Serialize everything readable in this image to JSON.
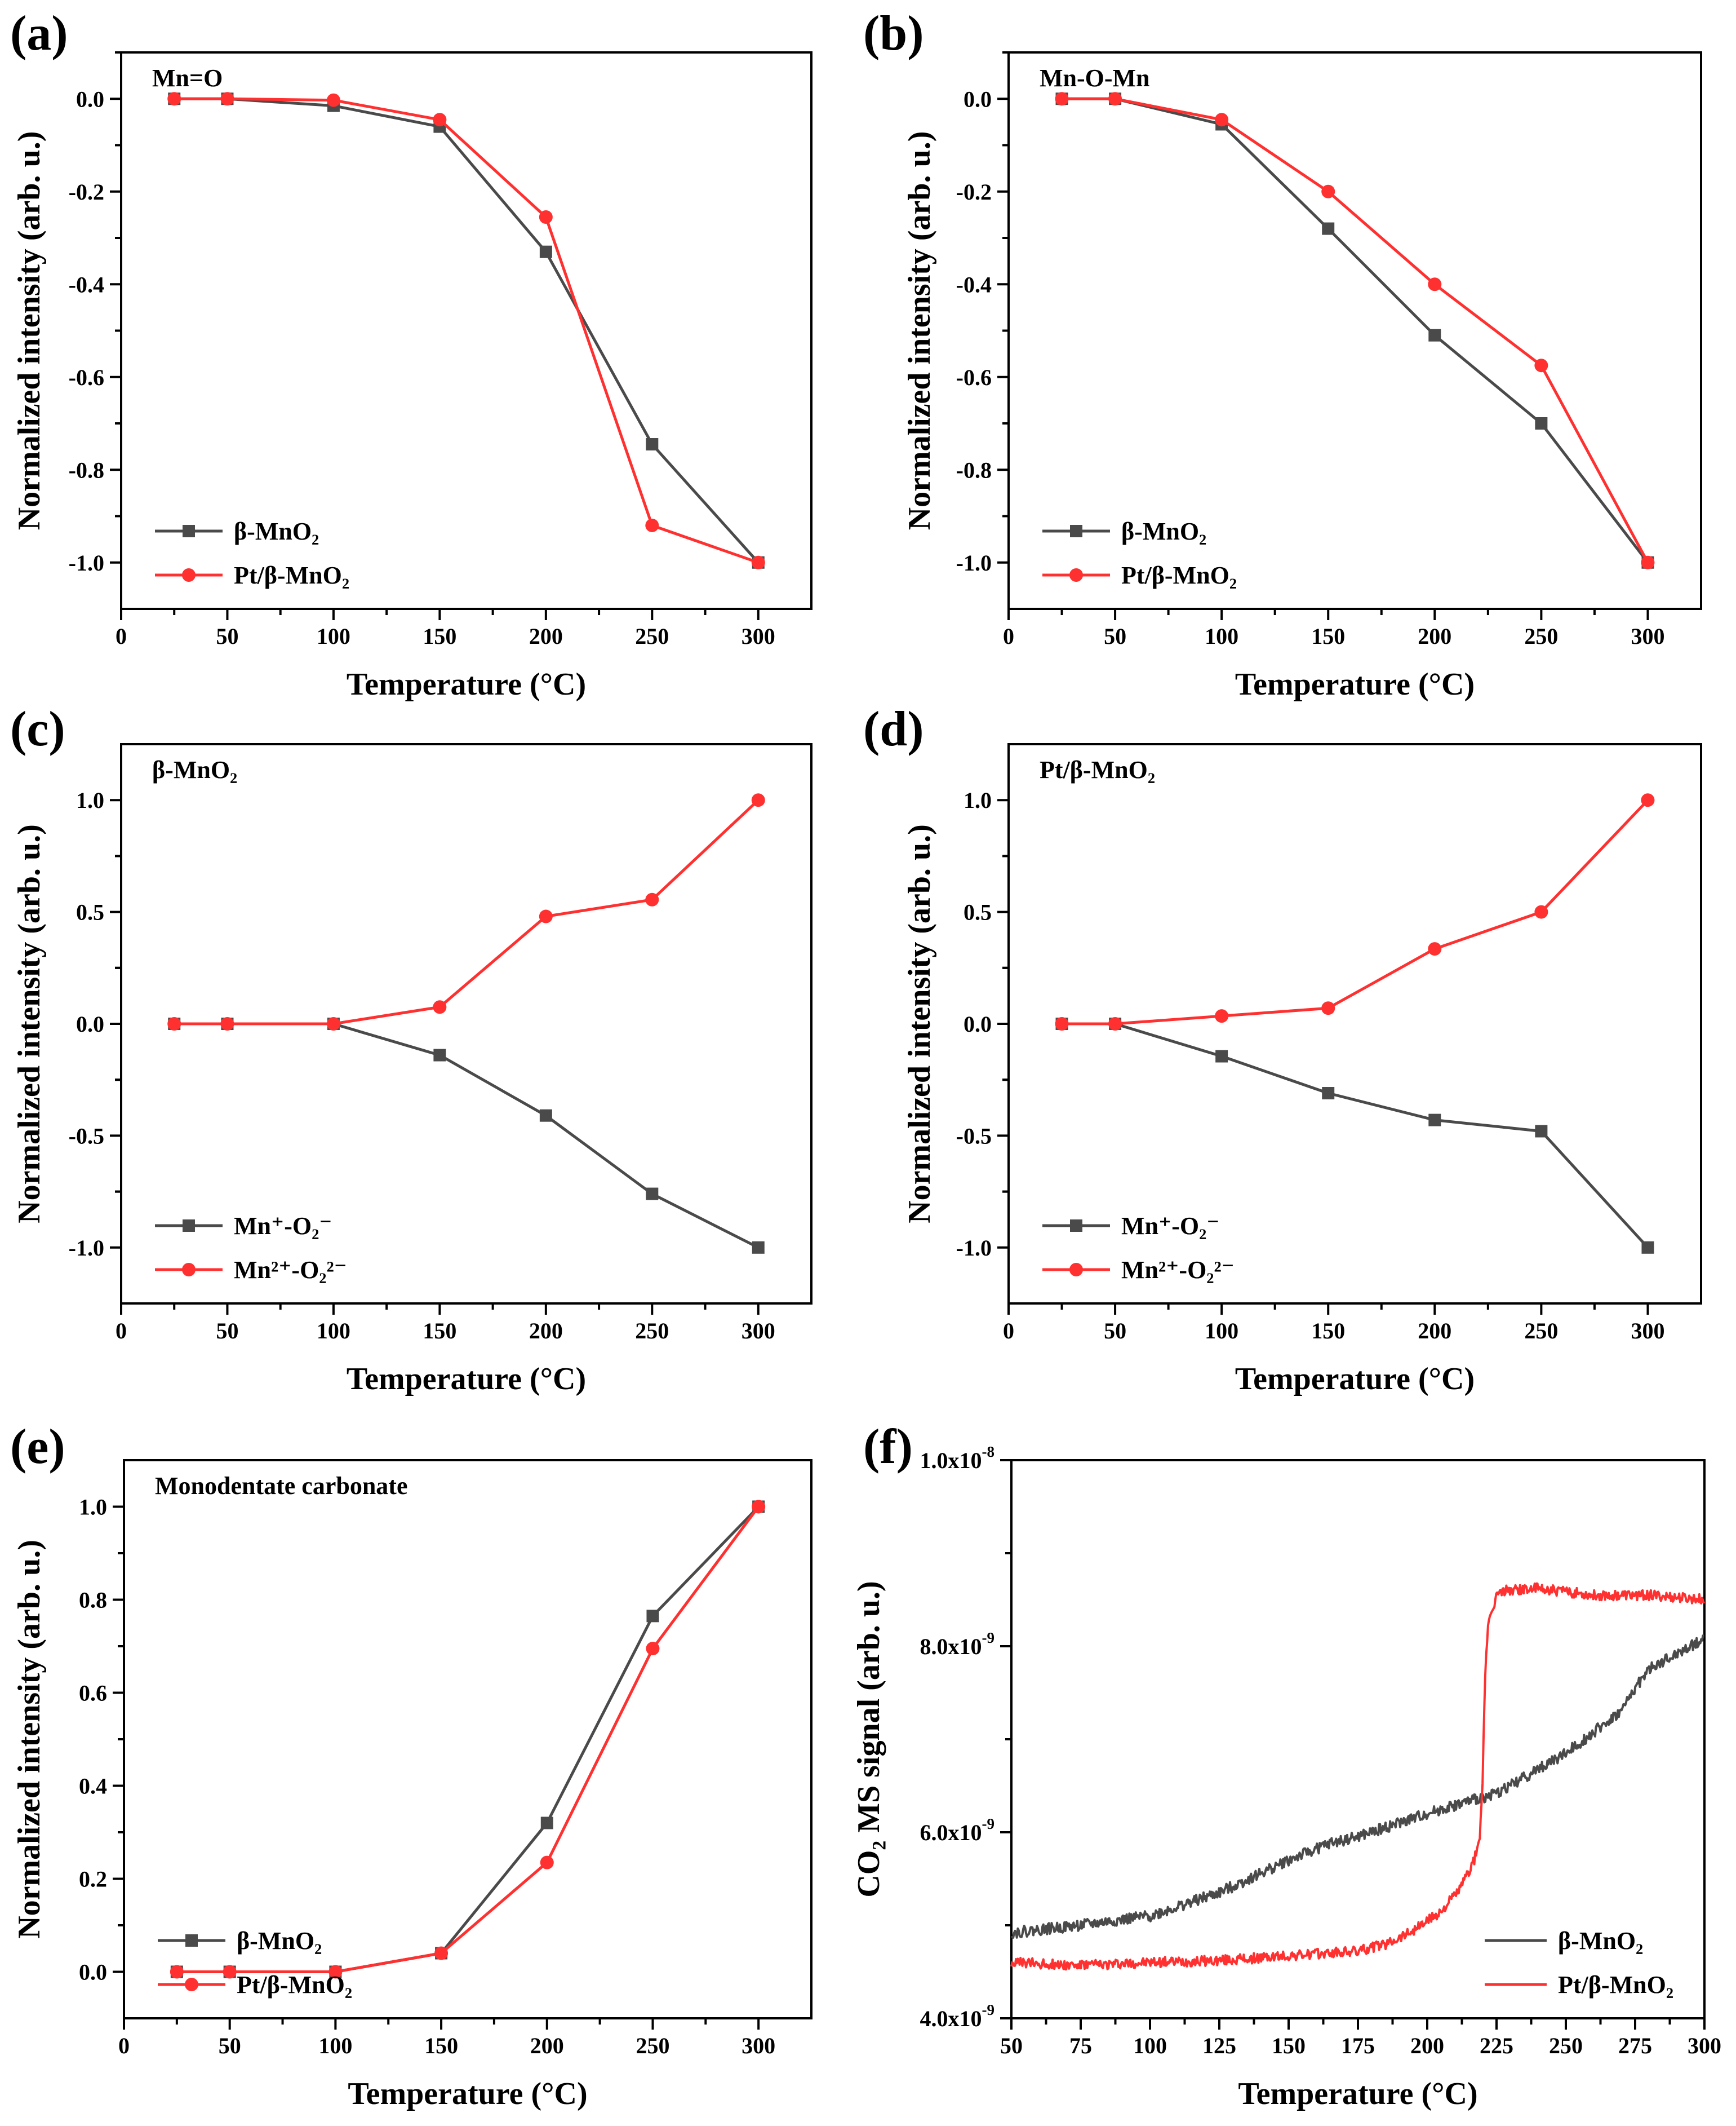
{
  "chart_data": [
    {
      "panel": "(a)",
      "type": "line",
      "label": "Mn=O",
      "xlabel": "Temperature (°C)",
      "ylabel": "Normalized intensity (arb. u.)",
      "xlim": [
        0,
        325
      ],
      "ylim": [
        -1.1,
        0.1
      ],
      "xticks": [
        0,
        50,
        100,
        150,
        200,
        250,
        300
      ],
      "yticks": [
        0.0,
        -0.2,
        -0.4,
        -0.6,
        -0.8,
        -1.0
      ],
      "ytick_labels": [
        "0.0",
        "-0.2",
        "-0.4",
        "-0.6",
        "-0.8",
        "-1.0"
      ],
      "legend_position": "bottom-left",
      "x": [
        25,
        50,
        100,
        150,
        200,
        250,
        300
      ],
      "series": [
        {
          "name": "β-MnO₂",
          "name_prefix": "β",
          "name_rest": "-MnO",
          "name_sub": "2",
          "color": "#4a4a4a",
          "marker": "square",
          "values": [
            0.0,
            0.0,
            -0.015,
            -0.06,
            -0.33,
            -0.745,
            -1.0
          ]
        },
        {
          "name": "Pt/β-MnO₂",
          "name_pre": "Pt/",
          "name_prefix": "β",
          "name_rest": "-MnO",
          "name_sub": "2",
          "color": "#ff3030",
          "marker": "circle",
          "values": [
            0.0,
            0.0,
            -0.003,
            -0.045,
            -0.255,
            -0.92,
            -1.0
          ]
        }
      ]
    },
    {
      "panel": "(b)",
      "type": "line",
      "label": "Mn-O-Mn",
      "xlabel": "Temperature (°C)",
      "ylabel": "Normalized intensity (arb. u.)",
      "xlim": [
        0,
        325
      ],
      "ylim": [
        -1.1,
        0.1
      ],
      "xticks": [
        0,
        50,
        100,
        150,
        200,
        250,
        300
      ],
      "yticks": [
        0.0,
        -0.2,
        -0.4,
        -0.6,
        -0.8,
        -1.0
      ],
      "ytick_labels": [
        "0.0",
        "-0.2",
        "-0.4",
        "-0.6",
        "-0.8",
        "-1.0"
      ],
      "legend_position": "bottom-left",
      "x": [
        25,
        50,
        100,
        150,
        200,
        250,
        300
      ],
      "series": [
        {
          "name": "β-MnO₂",
          "name_prefix": "β",
          "name_rest": "-MnO",
          "name_sub": "2",
          "color": "#4a4a4a",
          "marker": "square",
          "values": [
            0.0,
            0.0,
            -0.055,
            -0.28,
            -0.51,
            -0.7,
            -1.0
          ]
        },
        {
          "name": "Pt/β-MnO₂",
          "name_pre": "Pt/",
          "name_prefix": "β",
          "name_rest": "-MnO",
          "name_sub": "2",
          "color": "#ff3030",
          "marker": "circle",
          "values": [
            0.0,
            0.0,
            -0.045,
            -0.2,
            -0.4,
            -0.575,
            -1.0
          ]
        }
      ]
    },
    {
      "panel": "(c)",
      "type": "line",
      "label": "β-MnO₂",
      "xlabel": "Temperature (°C)",
      "ylabel": "Normalized intensity (arb. u.)",
      "xlim": [
        0,
        325
      ],
      "ylim": [
        -1.25,
        1.25
      ],
      "xticks": [
        0,
        50,
        100,
        150,
        200,
        250,
        300
      ],
      "yticks": [
        1.0,
        0.5,
        0.0,
        -0.5,
        -1.0
      ],
      "ytick_labels": [
        "1.0",
        "0.5",
        "0.0",
        "-0.5",
        "-1.0"
      ],
      "legend_position": "bottom-left",
      "x": [
        25,
        50,
        100,
        150,
        200,
        250,
        300
      ],
      "series": [
        {
          "name": "Mn⁺-O₂⁻",
          "color": "#4a4a4a",
          "marker": "square",
          "values": [
            0.0,
            0.0,
            0.0,
            -0.14,
            -0.41,
            -0.76,
            -1.0
          ]
        },
        {
          "name": "Mn²⁺-O₂²⁻",
          "color": "#ff3030",
          "marker": "circle",
          "values": [
            0.0,
            0.0,
            0.0,
            0.075,
            0.48,
            0.555,
            1.0
          ]
        }
      ]
    },
    {
      "panel": "(d)",
      "type": "line",
      "label": "Pt/β-MnO₂",
      "xlabel": "Temperature (°C)",
      "ylabel": "Normalized intensity (arb. u.)",
      "xlim": [
        0,
        325
      ],
      "ylim": [
        -1.25,
        1.25
      ],
      "xticks": [
        0,
        50,
        100,
        150,
        200,
        250,
        300
      ],
      "yticks": [
        1.0,
        0.5,
        0.0,
        -0.5,
        -1.0
      ],
      "ytick_labels": [
        "1.0",
        "0.5",
        "0.0",
        "-0.5",
        "-1.0"
      ],
      "legend_position": "bottom-left",
      "x": [
        25,
        50,
        100,
        150,
        200,
        250,
        300
      ],
      "series": [
        {
          "name": "Mn⁺-O₂⁻",
          "color": "#4a4a4a",
          "marker": "square",
          "values": [
            0.0,
            0.0,
            -0.145,
            -0.31,
            -0.43,
            -0.48,
            -1.0
          ]
        },
        {
          "name": "Mn²⁺-O₂²⁻",
          "color": "#ff3030",
          "marker": "circle",
          "values": [
            0.0,
            0.0,
            0.035,
            0.07,
            0.335,
            0.5,
            1.0
          ]
        }
      ]
    },
    {
      "panel": "(e)",
      "type": "line",
      "label": "Monodentate carbonate",
      "xlabel": "Temperature (°C)",
      "ylabel": "Normalized intensity (arb. u.)",
      "xlim": [
        0,
        325
      ],
      "ylim": [
        -0.1,
        1.1
      ],
      "xticks": [
        0,
        50,
        100,
        150,
        200,
        250,
        300
      ],
      "yticks": [
        1.0,
        0.8,
        0.6,
        0.4,
        0.2,
        0.0
      ],
      "ytick_labels": [
        "1.0",
        "0.8",
        "0.6",
        "0.4",
        "0.2",
        "0.0"
      ],
      "legend_position": "bottom-left",
      "x": [
        25,
        50,
        100,
        150,
        200,
        250,
        300
      ],
      "series": [
        {
          "name": "β-MnO₂",
          "name_prefix": "β",
          "name_rest": "-MnO",
          "name_sub": "2",
          "color": "#4a4a4a",
          "marker": "square",
          "values": [
            0.0,
            0.0,
            0.0,
            0.04,
            0.32,
            0.765,
            1.0
          ]
        },
        {
          "name": "Pt/β-MnO₂",
          "name_pre": "Pt/",
          "name_prefix": "β",
          "name_rest": "-MnO",
          "name_sub": "2",
          "color": "#ff3030",
          "marker": "circle",
          "values": [
            0.0,
            0.0,
            0.0,
            0.04,
            0.235,
            0.695,
            1.0
          ]
        }
      ]
    },
    {
      "panel": "(f)",
      "type": "line",
      "label": "",
      "xlabel": "Temperature (°C)",
      "ylabel": "CO₂ MS signal (arb. u.)",
      "xlim": [
        50,
        300
      ],
      "ylim": [
        4e-09,
        1e-08
      ],
      "xticks": [
        50,
        75,
        100,
        125,
        150,
        175,
        200,
        225,
        250,
        275,
        300
      ],
      "yticks": [
        4e-09,
        6e-09,
        8e-09,
        1e-08
      ],
      "ytick_labels": [
        {
          "mantissa": "4.0x10",
          "exp": "-9"
        },
        {
          "mantissa": "6.0x10",
          "exp": "-9"
        },
        {
          "mantissa": "8.0x10",
          "exp": "-9"
        },
        {
          "mantissa": "1.0x10",
          "exp": "-8"
        }
      ],
      "legend_position": "bottom-right",
      "series": [
        {
          "name": "β-MnO₂",
          "name_prefix": "β",
          "name_rest": "-MnO",
          "name_sub": "2",
          "color": "#4a4a4a",
          "marker": "none",
          "noise": 6e-11,
          "x": [
            50,
            75,
            100,
            125,
            150,
            165,
            175,
            200,
            225,
            250,
            270,
            275,
            280,
            300
          ],
          "values": [
            4.92e-09,
            5e-09,
            5.1e-09,
            5.35e-09,
            5.7e-09,
            5.88e-09,
            5.95e-09,
            6.2e-09,
            6.42e-09,
            6.85e-09,
            7.3e-09,
            7.55e-09,
            7.75e-09,
            8.08e-09
          ]
        },
        {
          "name": "Pt/β-MnO₂",
          "name_pre": "Pt/",
          "name_prefix": "β",
          "name_rest": "-MnO",
          "name_sub": "2",
          "color": "#ff3030",
          "marker": "none",
          "noise": 5.5e-11,
          "x": [
            50,
            75,
            100,
            125,
            150,
            175,
            185,
            195,
            205,
            212,
            217,
            219,
            220,
            221,
            222,
            225,
            228,
            240,
            260,
            280,
            300
          ],
          "values": [
            4.6e-09,
            4.57e-09,
            4.6e-09,
            4.62e-09,
            4.67e-09,
            4.72e-09,
            4.8e-09,
            4.95e-09,
            5.15e-09,
            5.4e-09,
            5.7e-09,
            5.95e-09,
            6.6e-09,
            7.8e-09,
            8.2e-09,
            8.55e-09,
            8.6e-09,
            8.62e-09,
            8.55e-09,
            8.55e-09,
            8.5e-09
          ]
        }
      ]
    }
  ]
}
